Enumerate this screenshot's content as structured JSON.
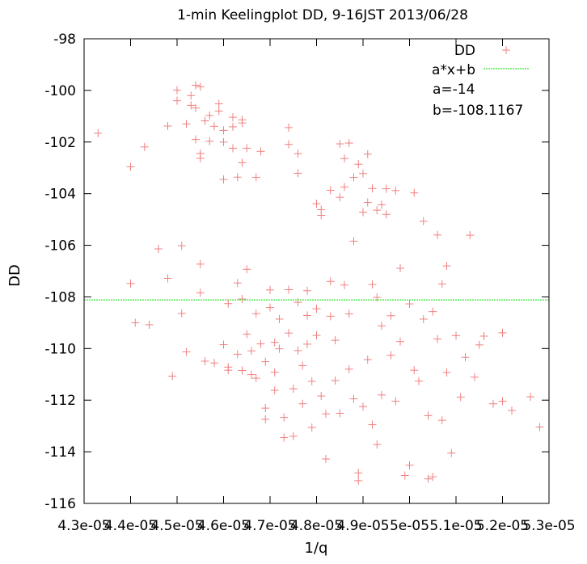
{
  "chart_data": {
    "type": "scatter",
    "title": "1-min Keelingplot DD, 9-16JST 2013/06/28",
    "xlabel": "1/q",
    "ylabel": "DD",
    "xlim": [
      4.3e-05,
      5.3e-05
    ],
    "ylim": [
      -116,
      -98
    ],
    "x_ticks": [
      "4.3e-05",
      "4.4e-05",
      "4.5e-05",
      "4.6e-05",
      "4.7e-05",
      "4.8e-05",
      "4.9e-05",
      "5e-05",
      "5.1e-05",
      "5.2e-05",
      "5.3e-05"
    ],
    "y_ticks": [
      "-116",
      "-114",
      "-112",
      "-110",
      "-108",
      "-106",
      "-104",
      "-102",
      "-100",
      "-98"
    ],
    "legend_position": "top-right",
    "annotations": [
      "a=-14",
      "b=-108.1167"
    ],
    "colors": {
      "points": "#f08080",
      "fit": "#00dd00",
      "axes": "#000000"
    },
    "series": [
      {
        "name": "DD",
        "marker": "plus",
        "points": [
          [
            4.33e-05,
            -101.66
          ],
          [
            4.4e-05,
            -102.96
          ],
          [
            4.43e-05,
            -102.19
          ],
          [
            4.4e-05,
            -107.48
          ],
          [
            4.41e-05,
            -109.0
          ],
          [
            4.44e-05,
            -109.08
          ],
          [
            4.46e-05,
            -106.14
          ],
          [
            4.48e-05,
            -101.38
          ],
          [
            4.48e-05,
            -107.28
          ],
          [
            4.49e-05,
            -111.07
          ],
          [
            4.5e-05,
            -100.4
          ],
          [
            4.5e-05,
            -99.99
          ],
          [
            4.51e-05,
            -106.02
          ],
          [
            4.51e-05,
            -108.64
          ],
          [
            4.52e-05,
            -110.13
          ],
          [
            4.52e-05,
            -101.3
          ],
          [
            4.53e-05,
            -100.58
          ],
          [
            4.53e-05,
            -100.2
          ],
          [
            4.54e-05,
            -100.68
          ],
          [
            4.54e-05,
            -101.9
          ],
          [
            4.54e-05,
            -99.8
          ],
          [
            4.55e-05,
            -99.86
          ],
          [
            4.55e-05,
            -102.44
          ],
          [
            4.55e-05,
            -102.63
          ],
          [
            4.55e-05,
            -106.73
          ],
          [
            4.55e-05,
            -107.84
          ],
          [
            4.56e-05,
            -110.49
          ],
          [
            4.56e-05,
            -101.18
          ],
          [
            4.57e-05,
            -100.97
          ],
          [
            4.57e-05,
            -101.97
          ],
          [
            4.58e-05,
            -101.39
          ],
          [
            4.58e-05,
            -110.56
          ],
          [
            4.59e-05,
            -100.52
          ],
          [
            4.59e-05,
            -100.8
          ],
          [
            4.6e-05,
            -101.55
          ],
          [
            4.6e-05,
            -102.0
          ],
          [
            4.6e-05,
            -103.45
          ],
          [
            4.6e-05,
            -109.85
          ],
          [
            4.61e-05,
            -110.84
          ],
          [
            4.61e-05,
            -108.26
          ],
          [
            4.61e-05,
            -110.72
          ],
          [
            4.62e-05,
            -101.04
          ],
          [
            4.62e-05,
            -101.41
          ],
          [
            4.62e-05,
            -102.24
          ],
          [
            4.63e-05,
            -103.36
          ],
          [
            4.63e-05,
            -110.22
          ],
          [
            4.63e-05,
            -107.46
          ],
          [
            4.64e-05,
            -101.26
          ],
          [
            4.64e-05,
            -101.14
          ],
          [
            4.64e-05,
            -102.8
          ],
          [
            4.64e-05,
            -108.08
          ],
          [
            4.64e-05,
            -110.85
          ],
          [
            4.65e-05,
            -102.24
          ],
          [
            4.65e-05,
            -106.93
          ],
          [
            4.65e-05,
            -109.44
          ],
          [
            4.66e-05,
            -110.09
          ],
          [
            4.66e-05,
            -111.01
          ],
          [
            4.67e-05,
            -103.37
          ],
          [
            4.67e-05,
            -108.65
          ],
          [
            4.67e-05,
            -111.15
          ],
          [
            4.68e-05,
            -102.36
          ],
          [
            4.68e-05,
            -109.82
          ],
          [
            4.69e-05,
            -110.51
          ],
          [
            4.69e-05,
            -112.31
          ],
          [
            4.69e-05,
            -112.74
          ],
          [
            4.7e-05,
            -107.73
          ],
          [
            4.7e-05,
            -108.41
          ],
          [
            4.71e-05,
            -109.76
          ],
          [
            4.71e-05,
            -110.92
          ],
          [
            4.71e-05,
            -111.62
          ],
          [
            4.72e-05,
            -108.86
          ],
          [
            4.72e-05,
            -110.01
          ],
          [
            4.73e-05,
            -112.67
          ],
          [
            4.73e-05,
            -113.45
          ],
          [
            4.74e-05,
            -101.44
          ],
          [
            4.74e-05,
            -102.09
          ],
          [
            4.74e-05,
            -107.72
          ],
          [
            4.74e-05,
            -109.4
          ],
          [
            4.75e-05,
            -111.56
          ],
          [
            4.75e-05,
            -113.4
          ],
          [
            4.76e-05,
            -102.45
          ],
          [
            4.76e-05,
            -103.21
          ],
          [
            4.76e-05,
            -108.21
          ],
          [
            4.76e-05,
            -110.08
          ],
          [
            4.77e-05,
            -110.66
          ],
          [
            4.77e-05,
            -112.14
          ],
          [
            4.78e-05,
            -107.76
          ],
          [
            4.78e-05,
            -108.72
          ],
          [
            4.78e-05,
            -109.83
          ],
          [
            4.79e-05,
            -111.27
          ],
          [
            4.79e-05,
            -113.06
          ],
          [
            4.8e-05,
            -104.39
          ],
          [
            4.8e-05,
            -108.46
          ],
          [
            4.8e-05,
            -109.49
          ],
          [
            4.81e-05,
            -104.84
          ],
          [
            4.81e-05,
            -104.62
          ],
          [
            4.81e-05,
            -111.84
          ],
          [
            4.82e-05,
            -112.53
          ],
          [
            4.82e-05,
            -114.28
          ],
          [
            4.83e-05,
            -103.87
          ],
          [
            4.83e-05,
            -107.4
          ],
          [
            4.83e-05,
            -108.75
          ],
          [
            4.84e-05,
            -109.68
          ],
          [
            4.84e-05,
            -111.24
          ],
          [
            4.85e-05,
            -102.07
          ],
          [
            4.85e-05,
            -104.14
          ],
          [
            4.85e-05,
            -112.51
          ],
          [
            4.86e-05,
            -103.74
          ],
          [
            4.86e-05,
            -102.64
          ],
          [
            4.86e-05,
            -107.54
          ],
          [
            4.87e-05,
            -108.66
          ],
          [
            4.87e-05,
            -110.8
          ],
          [
            4.87e-05,
            -102.04
          ],
          [
            4.88e-05,
            -103.37
          ],
          [
            4.88e-05,
            -105.84
          ],
          [
            4.88e-05,
            -111.95
          ],
          [
            4.89e-05,
            -102.86
          ],
          [
            4.89e-05,
            -114.82
          ],
          [
            4.89e-05,
            -115.12
          ],
          [
            4.9e-05,
            -103.22
          ],
          [
            4.9e-05,
            -104.72
          ],
          [
            4.9e-05,
            -112.25
          ],
          [
            4.91e-05,
            -102.47
          ],
          [
            4.91e-05,
            -104.34
          ],
          [
            4.91e-05,
            -110.43
          ],
          [
            4.92e-05,
            -103.8
          ],
          [
            4.92e-05,
            -107.52
          ],
          [
            4.92e-05,
            -112.95
          ],
          [
            4.93e-05,
            -104.64
          ],
          [
            4.93e-05,
            -108.02
          ],
          [
            4.93e-05,
            -113.72
          ],
          [
            4.94e-05,
            -104.43
          ],
          [
            4.94e-05,
            -109.12
          ],
          [
            4.94e-05,
            -111.8
          ],
          [
            4.95e-05,
            -104.8
          ],
          [
            4.95e-05,
            -103.81
          ],
          [
            4.96e-05,
            -108.73
          ],
          [
            4.96e-05,
            -110.26
          ],
          [
            4.97e-05,
            -112.04
          ],
          [
            4.97e-05,
            -103.88
          ],
          [
            4.98e-05,
            -106.89
          ],
          [
            4.98e-05,
            -109.73
          ],
          [
            4.99e-05,
            -114.92
          ],
          [
            5e-05,
            -108.27
          ],
          [
            5e-05,
            -114.52
          ],
          [
            5.01e-05,
            -103.97
          ],
          [
            5.01e-05,
            -110.84
          ],
          [
            5.02e-05,
            -111.26
          ],
          [
            5.03e-05,
            -105.07
          ],
          [
            5.03e-05,
            -108.86
          ],
          [
            5.04e-05,
            -112.6
          ],
          [
            5.04e-05,
            -115.05
          ],
          [
            5.05e-05,
            -114.97
          ],
          [
            5.05e-05,
            -108.57
          ],
          [
            5.06e-05,
            -105.6
          ],
          [
            5.06e-05,
            -109.63
          ],
          [
            5.07e-05,
            -112.78
          ],
          [
            5.07e-05,
            -107.5
          ],
          [
            5.08e-05,
            -110.93
          ],
          [
            5.08e-05,
            -106.8
          ],
          [
            5.09e-05,
            -114.05
          ],
          [
            5.1e-05,
            -109.5
          ],
          [
            5.11e-05,
            -111.88
          ],
          [
            5.12e-05,
            -110.34
          ],
          [
            5.13e-05,
            -105.61
          ],
          [
            5.14e-05,
            -111.11
          ],
          [
            5.15e-05,
            -109.86
          ],
          [
            5.16e-05,
            -109.52
          ],
          [
            5.18e-05,
            -112.14
          ],
          [
            5.2e-05,
            -109.39
          ],
          [
            5.2e-05,
            -112.04
          ],
          [
            5.22e-05,
            -112.4
          ],
          [
            5.26e-05,
            -111.87
          ],
          [
            5.28e-05,
            -113.04
          ]
        ]
      },
      {
        "name": "a*x+b",
        "type": "line",
        "y_constant": -108.1167
      }
    ]
  }
}
